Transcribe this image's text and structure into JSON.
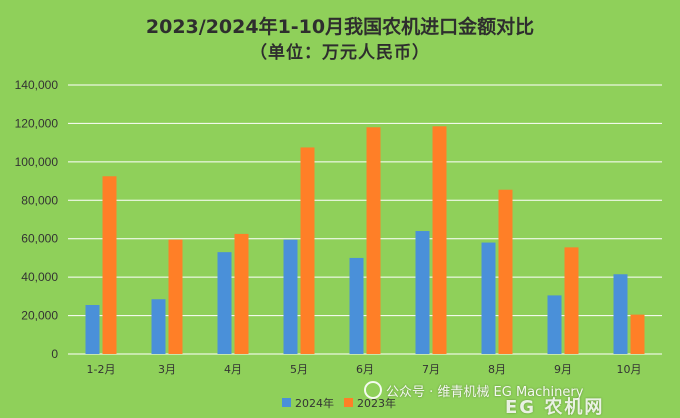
{
  "chart_data": {
    "type": "bar",
    "title": "2023/2024年1-10月我国农机进口金额对比",
    "subtitle": "（单位：万元人民币）",
    "categories": [
      "1-2月",
      "3月",
      "4月",
      "5月",
      "6月",
      "7月",
      "8月",
      "9月",
      "10月"
    ],
    "series": [
      {
        "name": "2024年",
        "color": "#4a90d9",
        "values": [
          25500,
          28500,
          53000,
          59500,
          50000,
          64000,
          58000,
          30500,
          41500
        ]
      },
      {
        "name": "2023年",
        "color": "#ff7f27",
        "values": [
          92500,
          59500,
          62500,
          107500,
          118000,
          118500,
          85500,
          55500,
          20500
        ]
      }
    ],
    "yticks": [
      "0",
      "20,000",
      "40,000",
      "60,000",
      "80,000",
      "100,000",
      "120,000",
      "140,000"
    ],
    "ylim": [
      0,
      140000
    ],
    "grid": true,
    "legend_position": "bottom"
  },
  "watermark": {
    "line1": "公众号 · 维青机械 EG Machinery",
    "line2": "EG 农机网"
  }
}
